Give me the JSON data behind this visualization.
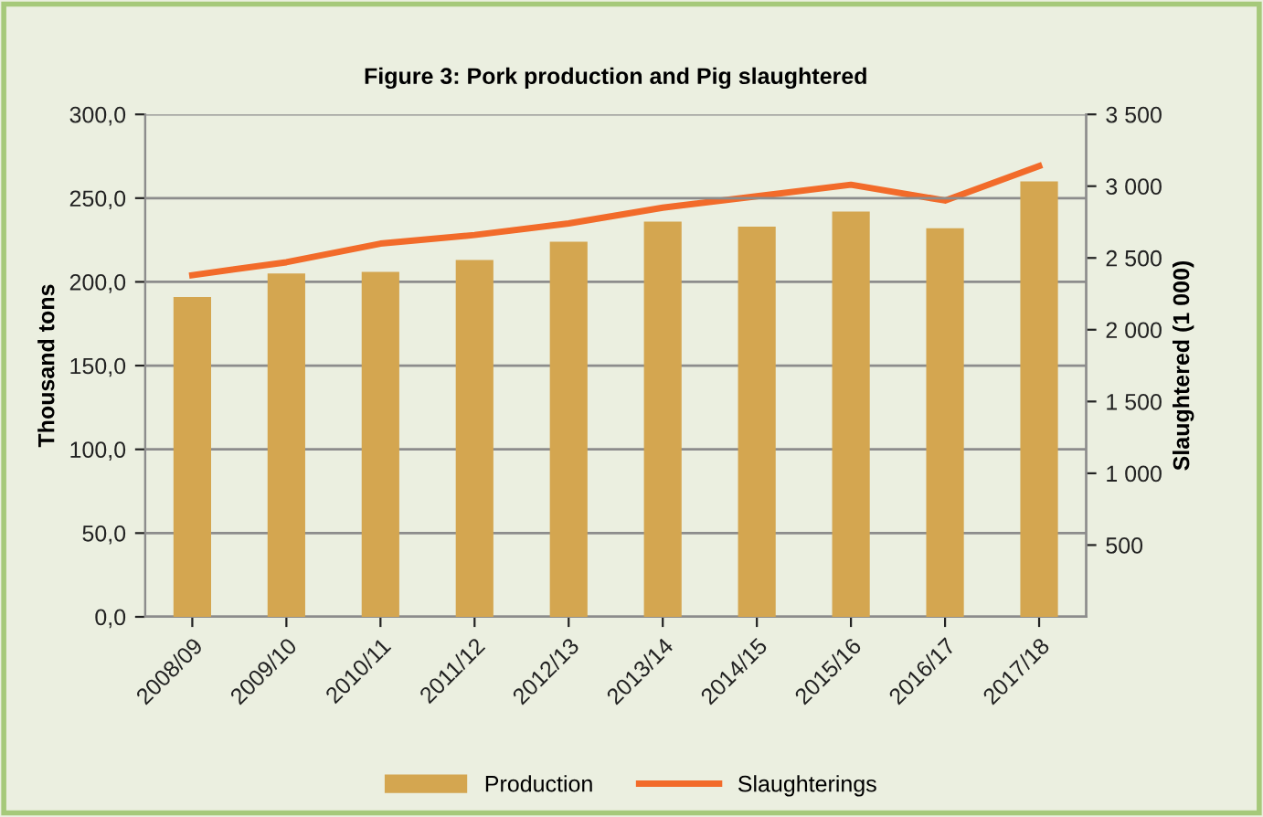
{
  "chart_data": {
    "type": "bar",
    "title": "Figure 3: Pork production and Pig slaughtered",
    "ylabel": "Thousand tons",
    "y2label": "Slaughtered (1 000)",
    "categories": [
      "2008/09",
      "2009/10",
      "2010/11",
      "2011/12",
      "2012/13",
      "2013/14",
      "2014/15",
      "2015/16",
      "2016/17",
      "2017/18"
    ],
    "series": [
      {
        "name": "Production",
        "color": "#d4a650",
        "values": [
          191,
          205,
          206,
          213,
          224,
          236,
          233,
          242,
          232,
          260
        ]
      },
      {
        "name": "Slaughterings",
        "type": "line",
        "axis": "y2",
        "color": "#f26b2a",
        "values": [
          2380,
          2470,
          2600,
          2660,
          2740,
          2850,
          2930,
          3010,
          2900,
          3140
        ]
      }
    ],
    "ylim": [
      0,
      300
    ],
    "yticks": [
      {
        "value": 0,
        "label": "0,0"
      },
      {
        "value": 50,
        "label": "50,0"
      },
      {
        "value": 100,
        "label": "100,0"
      },
      {
        "value": 150,
        "label": "150,0"
      },
      {
        "value": 200,
        "label": "200,0"
      },
      {
        "value": 250,
        "label": "250,0"
      },
      {
        "value": 300,
        "label": "300,0"
      }
    ],
    "y2lim": [
      0,
      3500
    ],
    "y2ticks": [
      {
        "value": 500,
        "label": "500"
      },
      {
        "value": 1000,
        "label": "1 000"
      },
      {
        "value": 1500,
        "label": "1 500"
      },
      {
        "value": 2000,
        "label": "2 000"
      },
      {
        "value": 2500,
        "label": "2 500"
      },
      {
        "value": 3000,
        "label": "3 000"
      },
      {
        "value": 3500,
        "label": "3 500"
      }
    ],
    "grid": "y",
    "legend": "bottom",
    "marker": "none",
    "line_style": "solid"
  }
}
